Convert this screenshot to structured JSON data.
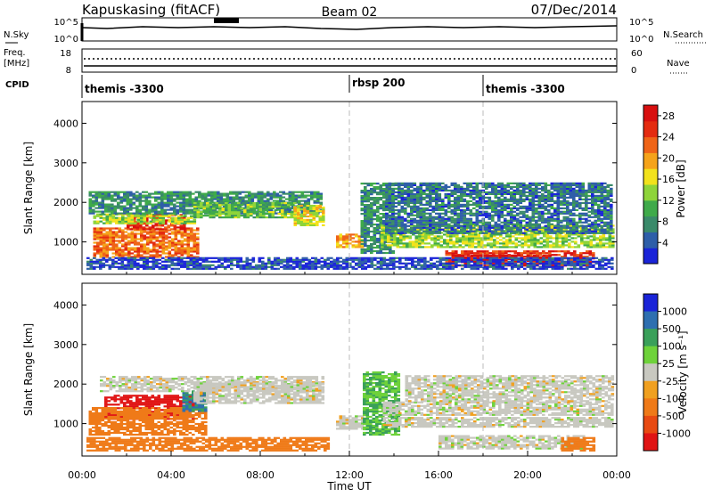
{
  "header": {
    "station": "Kapuskasing (fitACF)",
    "beam": "Beam 02",
    "date": "07/Dec/2014"
  },
  "top_panels": {
    "nsky_label": "N.Sky",
    "nsearch_label": "N.Search",
    "freq_label": "Freq.",
    "freq_unit": "[MHz]",
    "nave_label": "Nave",
    "cpid_label": "CPID",
    "nsky_ticks": [
      "10^5",
      "10^0"
    ],
    "nsearch_ticks": [
      "10^5",
      "10^0"
    ],
    "freq_ticks": [
      "18",
      "8"
    ],
    "nave_ticks": [
      "60",
      "0"
    ]
  },
  "cpid": [
    {
      "label": "themis -3300",
      "start_hour": 0
    },
    {
      "label": "rbsp 200",
      "start_hour": 12
    },
    {
      "label": "themis -3300",
      "start_hour": 18
    }
  ],
  "colors": {
    "power": [
      "#1a24d8",
      "#2e5ea8",
      "#3a8a6a",
      "#3faa4a",
      "#8ed43a",
      "#f2e21c",
      "#f5a31a",
      "#ef6417",
      "#e42b10",
      "#d80f0f"
    ],
    "velocity": [
      "#1a24d8",
      "#2e6fb0",
      "#3aa05a",
      "#6ed23a",
      "#c8c8c0",
      "#f0a020",
      "#ef7a18",
      "#e84a12",
      "#e01414"
    ],
    "ground": "#bdbdb5"
  },
  "chart_data": [
    {
      "type": "heatmap",
      "name": "power",
      "ylabel": "Slant Range [km]",
      "yticks": [
        1000,
        2000,
        3000,
        4000
      ],
      "ylim": [
        180,
        4550
      ],
      "xlim": [
        0,
        24
      ],
      "colorbar_label": "Power [dB]",
      "colorbar_ticks": [
        4,
        8,
        12,
        16,
        20,
        24,
        28
      ],
      "colorbar_range": [
        0,
        30
      ],
      "bands": [
        {
          "t0": 0.5,
          "t1": 5.2,
          "r0": 600,
          "r1": 1350,
          "v": 22
        },
        {
          "t0": 2.0,
          "t1": 4.6,
          "r0": 1300,
          "r1": 1700,
          "v": 26
        },
        {
          "t0": 0.5,
          "t1": 5.0,
          "r0": 1450,
          "r1": 1700,
          "v": 14
        },
        {
          "t0": 0.3,
          "t1": 10.8,
          "r0": 1700,
          "r1": 2250,
          "v": 8
        },
        {
          "t0": 5.0,
          "t1": 9.5,
          "r0": 1600,
          "r1": 2000,
          "v": 12
        },
        {
          "t0": 9.5,
          "t1": 10.8,
          "r0": 1400,
          "r1": 1900,
          "v": 16
        },
        {
          "t0": 11.4,
          "t1": 12.6,
          "r0": 850,
          "r1": 1200,
          "v": 20
        },
        {
          "t0": 12.5,
          "t1": 14.0,
          "r0": 700,
          "r1": 2500,
          "v": 8
        },
        {
          "t0": 13.4,
          "t1": 23.8,
          "r0": 850,
          "r1": 1400,
          "v": 14
        },
        {
          "t0": 13.6,
          "t1": 23.8,
          "r0": 1200,
          "r1": 2500,
          "v": 6
        },
        {
          "t0": 16.3,
          "t1": 23.0,
          "r0": 380,
          "r1": 750,
          "v": 26
        },
        {
          "t0": 16.6,
          "t1": 21.0,
          "r0": 500,
          "r1": 650,
          "v": 29
        },
        {
          "t0": 0.2,
          "t1": 23.8,
          "r0": 300,
          "r1": 600,
          "v": 3
        }
      ]
    },
    {
      "type": "heatmap",
      "name": "velocity",
      "ylabel": "Slant Range [km]",
      "yticks": [
        1000,
        2000,
        3000,
        4000
      ],
      "ylim": [
        180,
        4550
      ],
      "xlim": [
        0,
        24
      ],
      "xlabel": "Time UT",
      "xticks": [
        "00:00",
        "04:00",
        "08:00",
        "12:00",
        "16:00",
        "20:00",
        "00:00"
      ],
      "colorbar_label": "Velocity [m s⁻¹]",
      "colorbar_ticks": [
        "1000",
        "500",
        "100",
        "25",
        "-25",
        "-100",
        "-500",
        "-1000"
      ],
      "bands": [
        {
          "t0": 1.0,
          "t1": 5.0,
          "r0": 1100,
          "r1": 1700,
          "v": -800
        },
        {
          "t0": 0.3,
          "t1": 5.5,
          "r0": 700,
          "r1": 1400,
          "v": -200
        },
        {
          "t0": 4.5,
          "t1": 5.6,
          "r0": 1300,
          "r1": 1800,
          "v": 300
        },
        {
          "t0": 0.8,
          "t1": 10.8,
          "r0": 1800,
          "r1": 2200,
          "v": 0
        },
        {
          "t0": 5.0,
          "t1": 10.8,
          "r0": 1500,
          "r1": 2000,
          "v": 0
        },
        {
          "t0": 11.4,
          "t1": 12.6,
          "r0": 850,
          "r1": 1200,
          "v": 0
        },
        {
          "t0": 12.6,
          "t1": 14.2,
          "r0": 700,
          "r1": 2300,
          "v": 60
        },
        {
          "t0": 13.5,
          "t1": 23.8,
          "r0": 1200,
          "r1": 1550,
          "v": 0
        },
        {
          "t0": 13.5,
          "t1": 23.8,
          "r0": 900,
          "r1": 1150,
          "v": 0
        },
        {
          "t0": 14.5,
          "t1": 23.8,
          "r0": 1550,
          "r1": 2200,
          "v": 0
        },
        {
          "t0": 16.0,
          "t1": 22.5,
          "r0": 350,
          "r1": 700,
          "v": 0
        },
        {
          "t0": 21.5,
          "t1": 23.0,
          "r0": 300,
          "r1": 650,
          "v": -150
        },
        {
          "t0": 0.2,
          "t1": 11.0,
          "r0": 300,
          "r1": 650,
          "v": -120
        }
      ]
    }
  ]
}
